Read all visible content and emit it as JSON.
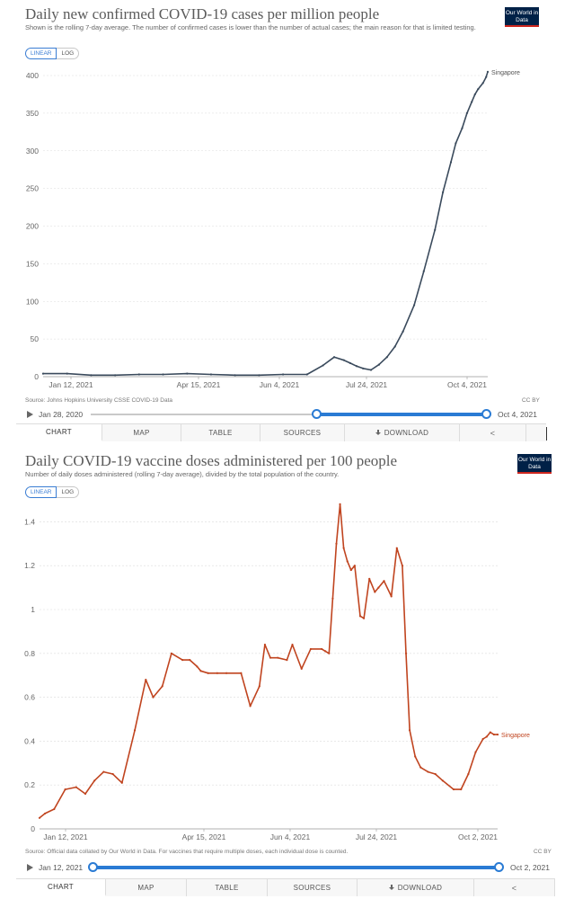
{
  "chart_data": [
    {
      "type": "line",
      "title": "Daily new confirmed COVID-19 cases per million people",
      "subtitle": "Shown is the rolling 7-day average. The number of confirmed cases is lower than the number of actual cases; the main reason for that is limited testing.",
      "scale_options": [
        "LINEAR",
        "LOG"
      ],
      "selected_scale": "LINEAR",
      "ylim": [
        0,
        400
      ],
      "yticks": [
        "0",
        "50",
        "100",
        "150",
        "200",
        "250",
        "300",
        "350",
        "400"
      ],
      "xtick_labels": [
        "Jan 12, 2021",
        "Apr 15, 2021",
        "Jun 4, 2021",
        "Jul 24, 2021",
        "Oct 4, 2021"
      ],
      "series": [
        {
          "name": "Singapore",
          "color": "#3a4a5c",
          "x_days": [
            0,
            15,
            30,
            45,
            60,
            75,
            90,
            105,
            120,
            135,
            150,
            165,
            175,
            182,
            188,
            192,
            196,
            200,
            205,
            210,
            215,
            220,
            225,
            232,
            238,
            245,
            250,
            255,
            258,
            262,
            265,
            268,
            270,
            272,
            275,
            277,
            278
          ],
          "values": [
            4,
            4,
            2,
            2,
            3,
            3,
            4,
            3,
            2,
            2,
            3,
            3,
            15,
            26,
            22,
            18,
            14,
            11,
            9,
            16,
            26,
            40,
            60,
            95,
            140,
            195,
            245,
            285,
            310,
            330,
            350,
            365,
            375,
            382,
            390,
            398,
            405
          ]
        }
      ],
      "source": "Source: Johns Hopkins University CSSE COVID-19 Data",
      "license": "CC BY",
      "timeline_start": "Jan 28, 2020",
      "timeline_end": "Oct 4, 2021",
      "logo": "Our World in Data"
    },
    {
      "type": "line",
      "title": "Daily COVID-19 vaccine doses administered per 100 people",
      "subtitle": "Number of daily doses administered (rolling 7-day average), divided by the total population of the country.",
      "scale_options": [
        "LINEAR",
        "LOG"
      ],
      "selected_scale": "LINEAR",
      "ylim": [
        0,
        1.5
      ],
      "yticks": [
        "0",
        "0.2",
        "0.4",
        "0.6",
        "0.8",
        "1",
        "1.2",
        "1.4"
      ],
      "xtick_labels": [
        "Jan 12, 2021",
        "Apr 15, 2021",
        "Jun 4, 2021",
        "Jul 24, 2021",
        "Oct 2, 2021"
      ],
      "series": [
        {
          "name": "Singapore",
          "color": "#c0441f",
          "x_days": [
            0,
            3,
            8,
            14,
            20,
            25,
            30,
            35,
            40,
            45,
            52,
            58,
            62,
            67,
            72,
            78,
            82,
            86,
            88,
            92,
            97,
            102,
            110,
            115,
            120,
            123,
            126,
            130,
            135,
            138,
            143,
            148,
            154,
            156,
            158,
            160,
            162,
            164,
            166,
            168,
            170,
            172,
            175,
            177,
            180,
            183,
            185,
            188,
            192,
            195,
            198,
            200,
            202,
            205,
            208,
            212,
            216,
            220,
            226,
            230,
            234,
            238,
            242,
            244,
            246,
            248,
            250
          ],
          "values": [
            0.05,
            0.07,
            0.09,
            0.18,
            0.19,
            0.16,
            0.22,
            0.26,
            0.25,
            0.21,
            0.45,
            0.68,
            0.6,
            0.65,
            0.8,
            0.77,
            0.77,
            0.74,
            0.72,
            0.71,
            0.71,
            0.71,
            0.71,
            0.56,
            0.65,
            0.84,
            0.78,
            0.78,
            0.77,
            0.84,
            0.73,
            0.82,
            0.82,
            0.81,
            0.8,
            1.05,
            1.3,
            1.48,
            1.28,
            1.22,
            1.18,
            1.2,
            0.97,
            0.96,
            1.14,
            1.08,
            1.1,
            1.13,
            1.06,
            1.28,
            1.2,
            0.8,
            0.45,
            0.33,
            0.28,
            0.26,
            0.25,
            0.22,
            0.18,
            0.18,
            0.25,
            0.35,
            0.41,
            0.42,
            0.44,
            0.43,
            0.43
          ]
        }
      ],
      "source": "Source: Official data collated by Our World in Data. For vaccines that require multiple doses, each individual dose is counted.",
      "license": "CC BY",
      "timeline_start": "Jan 12, 2021",
      "timeline_end": "Oct 2, 2021",
      "logo": "Our World in Data"
    }
  ],
  "tabs": [
    "CHART",
    "MAP",
    "TABLE",
    "SOURCES",
    "DOWNLOAD"
  ],
  "icons": {
    "play": "play-icon",
    "download": "download-icon",
    "share": "share-icon"
  }
}
